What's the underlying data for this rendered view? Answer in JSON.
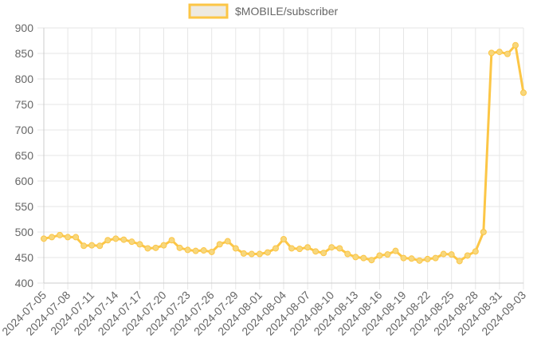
{
  "chart_data": {
    "type": "line",
    "legend": {
      "position": "top-center",
      "label": "$MOBILE/subscriber"
    },
    "colors": {
      "line": "#fcc646",
      "point_fill": "#f7d77d",
      "grid": "#e6e6e6",
      "axis_text": "#666666"
    },
    "grid": true,
    "ylim": [
      400,
      900
    ],
    "yticks": [
      400,
      450,
      500,
      550,
      600,
      650,
      700,
      750,
      800,
      850,
      900
    ],
    "xtick_labels": [
      "2024-07-05",
      "2024-07-08",
      "2024-07-11",
      "2024-07-14",
      "2024-07-17",
      "2024-07-20",
      "2024-07-23",
      "2024-07-26",
      "2024-07-29",
      "2024-08-01",
      "2024-08-04",
      "2024-08-07",
      "2024-08-10",
      "2024-08-13",
      "2024-08-16",
      "2024-08-19",
      "2024-08-22",
      "2024-08-25",
      "2024-08-28",
      "2024-08-31",
      "2024-09-03"
    ],
    "x": [
      "2024-07-05",
      "2024-07-06",
      "2024-07-07",
      "2024-07-08",
      "2024-07-09",
      "2024-07-10",
      "2024-07-11",
      "2024-07-12",
      "2024-07-13",
      "2024-07-14",
      "2024-07-15",
      "2024-07-16",
      "2024-07-17",
      "2024-07-18",
      "2024-07-19",
      "2024-07-20",
      "2024-07-21",
      "2024-07-22",
      "2024-07-23",
      "2024-07-24",
      "2024-07-25",
      "2024-07-26",
      "2024-07-27",
      "2024-07-28",
      "2024-07-29",
      "2024-07-30",
      "2024-07-31",
      "2024-08-01",
      "2024-08-02",
      "2024-08-03",
      "2024-08-04",
      "2024-08-05",
      "2024-08-06",
      "2024-08-07",
      "2024-08-08",
      "2024-08-09",
      "2024-08-10",
      "2024-08-11",
      "2024-08-12",
      "2024-08-13",
      "2024-08-14",
      "2024-08-15",
      "2024-08-16",
      "2024-08-17",
      "2024-08-18",
      "2024-08-19",
      "2024-08-20",
      "2024-08-21",
      "2024-08-22",
      "2024-08-23",
      "2024-08-24",
      "2024-08-25",
      "2024-08-26",
      "2024-08-27",
      "2024-08-28",
      "2024-08-29",
      "2024-08-30",
      "2024-08-31",
      "2024-09-01",
      "2024-09-02",
      "2024-09-03"
    ],
    "series": [
      {
        "name": "$MOBILE/subscriber",
        "values": [
          487,
          490,
          494,
          490,
          490,
          473,
          474,
          473,
          484,
          487,
          485,
          481,
          476,
          468,
          469,
          474,
          484,
          469,
          465,
          463,
          464,
          461,
          476,
          482,
          468,
          458,
          457,
          457,
          460,
          468,
          486,
          468,
          467,
          470,
          462,
          459,
          470,
          468,
          457,
          451,
          449,
          445,
          454,
          456,
          463,
          449,
          448,
          444,
          447,
          449,
          457,
          456,
          443,
          454,
          462,
          500,
          851,
          853,
          849,
          866,
          773
        ]
      }
    ]
  }
}
